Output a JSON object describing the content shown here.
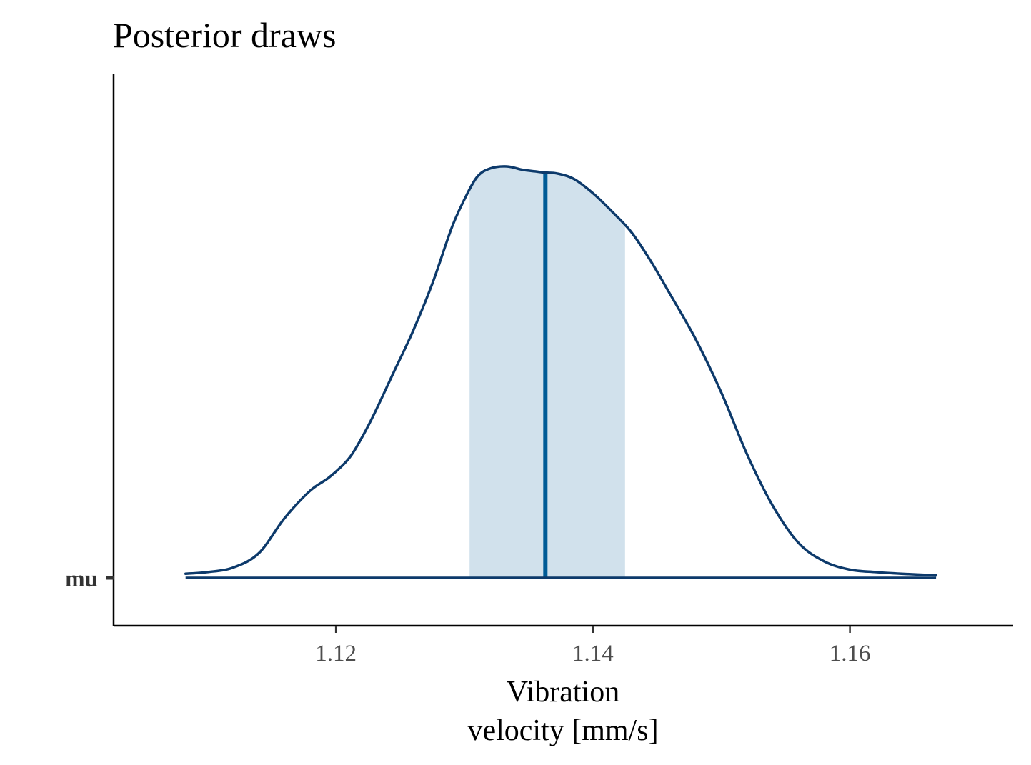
{
  "chart_data": {
    "type": "area",
    "title": "Posterior draws",
    "xlabel_lines": [
      "Vibration",
      "velocity [mm/s]"
    ],
    "ylabel": "",
    "y_categories": [
      "mu"
    ],
    "xlim": [
      1.1027,
      1.1727
    ],
    "x_ticks": [
      1.12,
      1.14,
      1.16
    ],
    "x_tick_labels": [
      "1.12",
      "1.14",
      "1.16"
    ],
    "series": [
      {
        "parameter": "mu",
        "median": 1.1363,
        "interval": [
          1.1304,
          1.1425
        ],
        "density": {
          "x": [
            1.1083,
            1.11,
            1.112,
            1.114,
            1.116,
            1.118,
            1.1195,
            1.121,
            1.122,
            1.123,
            1.1245,
            1.126,
            1.1275,
            1.129,
            1.13,
            1.131,
            1.132,
            1.1333,
            1.1345,
            1.1355,
            1.1363,
            1.1372,
            1.1385,
            1.14,
            1.1415,
            1.143,
            1.1445,
            1.146,
            1.148,
            1.15,
            1.152,
            1.154,
            1.156,
            1.158,
            1.16,
            1.162,
            1.164,
            1.1667
          ],
          "y": [
            0.01,
            0.014,
            0.025,
            0.06,
            0.145,
            0.212,
            0.245,
            0.29,
            0.34,
            0.4,
            0.5,
            0.6,
            0.715,
            0.85,
            0.92,
            0.975,
            0.995,
            1.0,
            0.992,
            0.988,
            0.985,
            0.983,
            0.97,
            0.935,
            0.89,
            0.84,
            0.77,
            0.69,
            0.58,
            0.45,
            0.3,
            0.175,
            0.085,
            0.04,
            0.02,
            0.014,
            0.01,
            0.006
          ]
        }
      }
    ],
    "colors": {
      "density_line": "#0d3a6b",
      "interval_fill": "#d1e1ec",
      "median_line": "#005b96",
      "axis": "#000000"
    },
    "grid": false,
    "legend": "none"
  }
}
